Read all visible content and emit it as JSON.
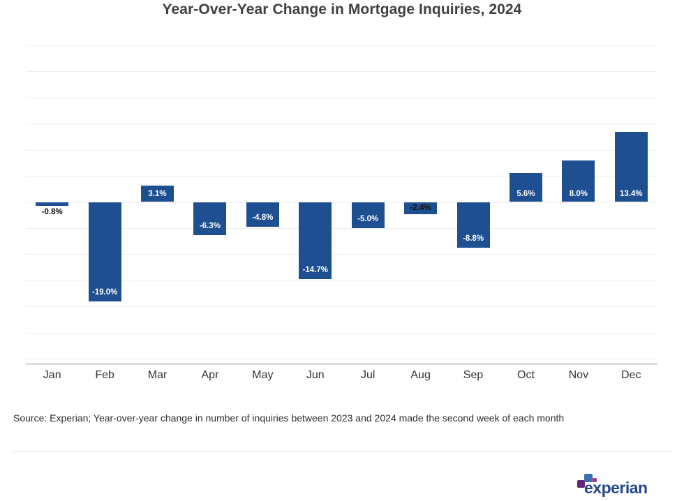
{
  "header": {
    "title": "Year-Over-Year Change in Mortgage Inquiries, 2024"
  },
  "chart_data": {
    "type": "bar",
    "title": "Year-Over-Year Change in Mortgage Inquiries, 2024",
    "categories": [
      "Jan",
      "Feb",
      "Mar",
      "Apr",
      "May",
      "Jun",
      "Jul",
      "Aug",
      "Sep",
      "Oct",
      "Nov",
      "Dec"
    ],
    "values": [
      -0.8,
      -19.0,
      3.1,
      -6.3,
      -4.8,
      -14.7,
      -5.0,
      -2.4,
      -8.8,
      5.6,
      8.0,
      13.4
    ],
    "labels": [
      "-0.8%",
      "-19.0%",
      "3.1%",
      "-6.3%",
      "-4.8%",
      "-14.7%",
      "-5.0%",
      "-2.4%",
      "-8.8%",
      "5.6%",
      "8.0%",
      "13.4%"
    ],
    "unit": "%",
    "xlabel": "",
    "ylabel": "",
    "ylim": [
      -30,
      30
    ],
    "grid_step": 5,
    "grid": true,
    "legend": false,
    "value_axis_labels_shown": false
  },
  "source": {
    "text": "Source: Experian; Year-over-year change in number of inquiries between 2023 and 2024 made the second week of each month"
  },
  "logo": {
    "wordmark": "experian"
  },
  "colors": {
    "bar": "#1d4f91",
    "bar_label_light": "#ffffff",
    "bar_label_dark": "#111111",
    "gridline": "#efefef",
    "axis_line": "#dcdcdc",
    "title_text": "#404040",
    "axis_text": "#333333",
    "source_text": "#2e2e2e",
    "logo_purple_square": "#632678",
    "logo_blue_square": "#406eb3",
    "logo_pink_dot": "#ba2f7d",
    "logo_wordmark": "#26478d"
  }
}
